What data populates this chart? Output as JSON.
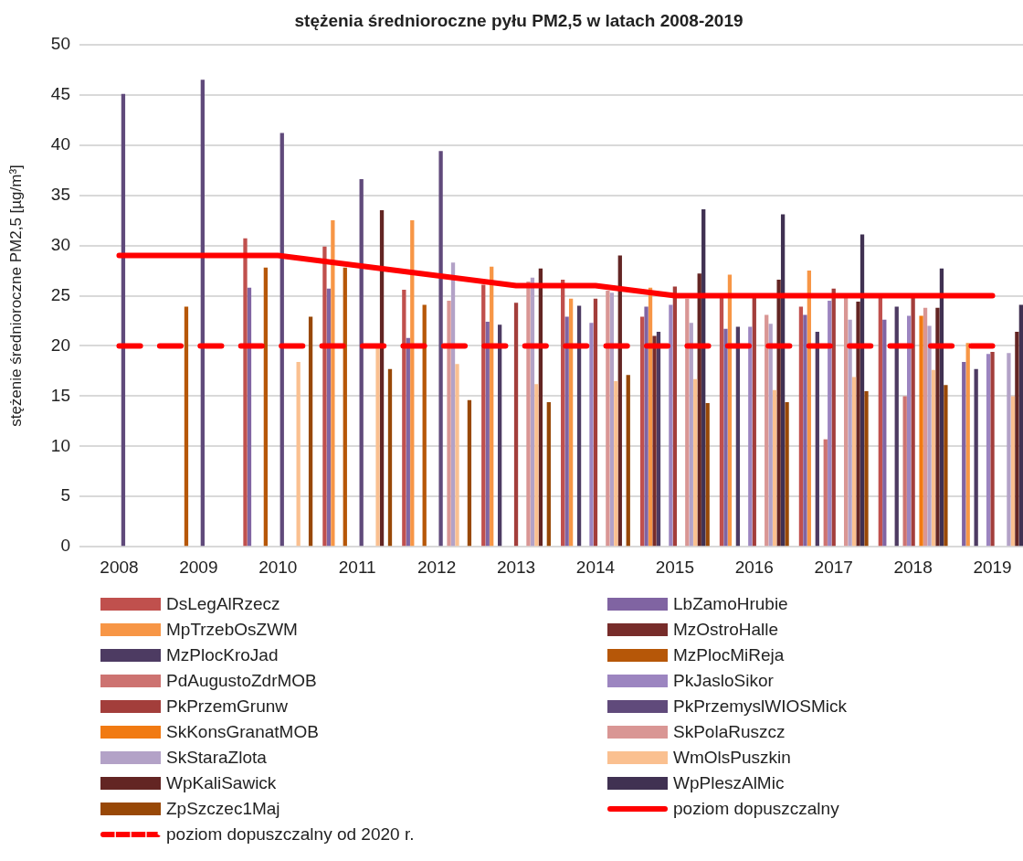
{
  "chart_data": {
    "type": "bar",
    "title": "stężenia średnioroczne pyłu PM2,5 w latach 2008-2019",
    "ylabel": "stężenie średnioroczne PM2,5 [µg/m³]",
    "categories": [
      "2008",
      "2009",
      "2010",
      "2011",
      "2012",
      "2013",
      "2014",
      "2015",
      "2016",
      "2017",
      "2018",
      "2019"
    ],
    "ylim": [
      0,
      50
    ],
    "yticks": [
      0,
      5,
      10,
      15,
      20,
      25,
      30,
      35,
      40,
      45,
      50
    ],
    "grid": "y",
    "legend": "bottom",
    "series": [
      {
        "name": "DsLegAlRzecz",
        "color": "#c0504d",
        "values": [
          null,
          null,
          30.7,
          29.9,
          25.6,
          26.1,
          26.6,
          22.9,
          24.9,
          23.9,
          24.9,
          null
        ]
      },
      {
        "name": "LbZamoHrubie",
        "color": "#8064a2",
        "values": [
          null,
          null,
          25.8,
          25.7,
          20.8,
          22.4,
          22.9,
          23.9,
          21.7,
          23.1,
          22.6,
          18.4
        ]
      },
      {
        "name": "MpTrzebOsZWM",
        "color": "#f79646",
        "values": [
          null,
          null,
          null,
          32.5,
          32.5,
          27.9,
          24.7,
          25.8,
          27.1,
          27.5,
          null,
          20.3
        ]
      },
      {
        "name": "MzOstroHalle",
        "color": "#772c2a",
        "values": [
          null,
          null,
          null,
          null,
          null,
          null,
          null,
          21.0,
          null,
          null,
          null,
          null
        ]
      },
      {
        "name": "MzPlocKroJad",
        "color": "#4d3b62",
        "values": [
          null,
          null,
          null,
          null,
          null,
          22.1,
          24.0,
          21.4,
          21.9,
          21.4,
          23.9,
          17.7
        ]
      },
      {
        "name": "MzPlocMiReja",
        "color": "#b65708",
        "values": [
          null,
          23.9,
          27.8,
          27.8,
          24.1,
          null,
          null,
          null,
          null,
          null,
          null,
          null
        ]
      },
      {
        "name": "PdAugustoZdrMOB",
        "color": "#cd7371",
        "values": [
          null,
          null,
          null,
          null,
          null,
          null,
          null,
          null,
          null,
          10.7,
          15.0,
          null
        ]
      },
      {
        "name": "PkJasloSikor",
        "color": "#9c85c0",
        "values": [
          null,
          null,
          null,
          null,
          null,
          null,
          22.3,
          24.1,
          21.9,
          24.5,
          23.0,
          19.2
        ]
      },
      {
        "name": "PkPrzemGrunw",
        "color": "#a33e3b",
        "values": [
          null,
          null,
          null,
          null,
          null,
          24.3,
          24.7,
          25.9,
          24.9,
          25.7,
          24.9,
          19.4
        ]
      },
      {
        "name": "PkPrzemyslWIOSMick",
        "color": "#604a7b",
        "values": [
          45.1,
          46.5,
          41.2,
          36.6,
          39.4,
          null,
          null,
          null,
          null,
          null,
          null,
          null
        ]
      },
      {
        "name": "SkKonsGranatMOB",
        "color": "#f17a12",
        "values": [
          null,
          null,
          null,
          null,
          null,
          null,
          null,
          null,
          null,
          null,
          23.0,
          null
        ]
      },
      {
        "name": "SkPolaRuszcz",
        "color": "#d99694",
        "values": [
          null,
          null,
          null,
          null,
          24.5,
          26.4,
          25.5,
          24.7,
          23.1,
          24.8,
          23.8,
          null
        ]
      },
      {
        "name": "SkStaraZlota",
        "color": "#b3a2c7",
        "values": [
          null,
          null,
          null,
          null,
          28.3,
          26.8,
          25.3,
          22.3,
          22.2,
          22.6,
          22.0,
          19.3
        ]
      },
      {
        "name": "WmOlsPuszkin",
        "color": "#fac090",
        "values": [
          null,
          null,
          18.4,
          19.9,
          18.2,
          16.2,
          16.5,
          16.7,
          15.6,
          16.9,
          17.6,
          15.0
        ]
      },
      {
        "name": "WpKaliSawick",
        "color": "#632523",
        "values": [
          null,
          null,
          null,
          33.5,
          null,
          27.7,
          29.0,
          27.2,
          26.6,
          24.4,
          23.8,
          21.4
        ]
      },
      {
        "name": "WpPleszAlMic",
        "color": "#403152",
        "values": [
          null,
          null,
          null,
          null,
          null,
          null,
          null,
          33.6,
          33.1,
          31.1,
          27.7,
          24.1
        ]
      },
      {
        "name": "ZpSzczec1Maj",
        "color": "#984807",
        "values": [
          null,
          null,
          22.9,
          17.7,
          14.6,
          14.4,
          17.1,
          14.3,
          14.4,
          15.5,
          16.1,
          null
        ]
      },
      {
        "name": "poziom dopuszczalny",
        "type": "line",
        "line_style": "solid",
        "color": "#ff0000",
        "values": [
          29,
          29,
          29,
          28,
          27,
          26,
          26,
          25,
          25,
          25,
          25,
          25
        ]
      },
      {
        "name": "poziom dopuszczalny od 2020 r.",
        "type": "line",
        "line_style": "dashed",
        "color": "#ff0000",
        "values": [
          20,
          20,
          20,
          20,
          20,
          20,
          20,
          20,
          20,
          20,
          20,
          20
        ]
      }
    ]
  }
}
